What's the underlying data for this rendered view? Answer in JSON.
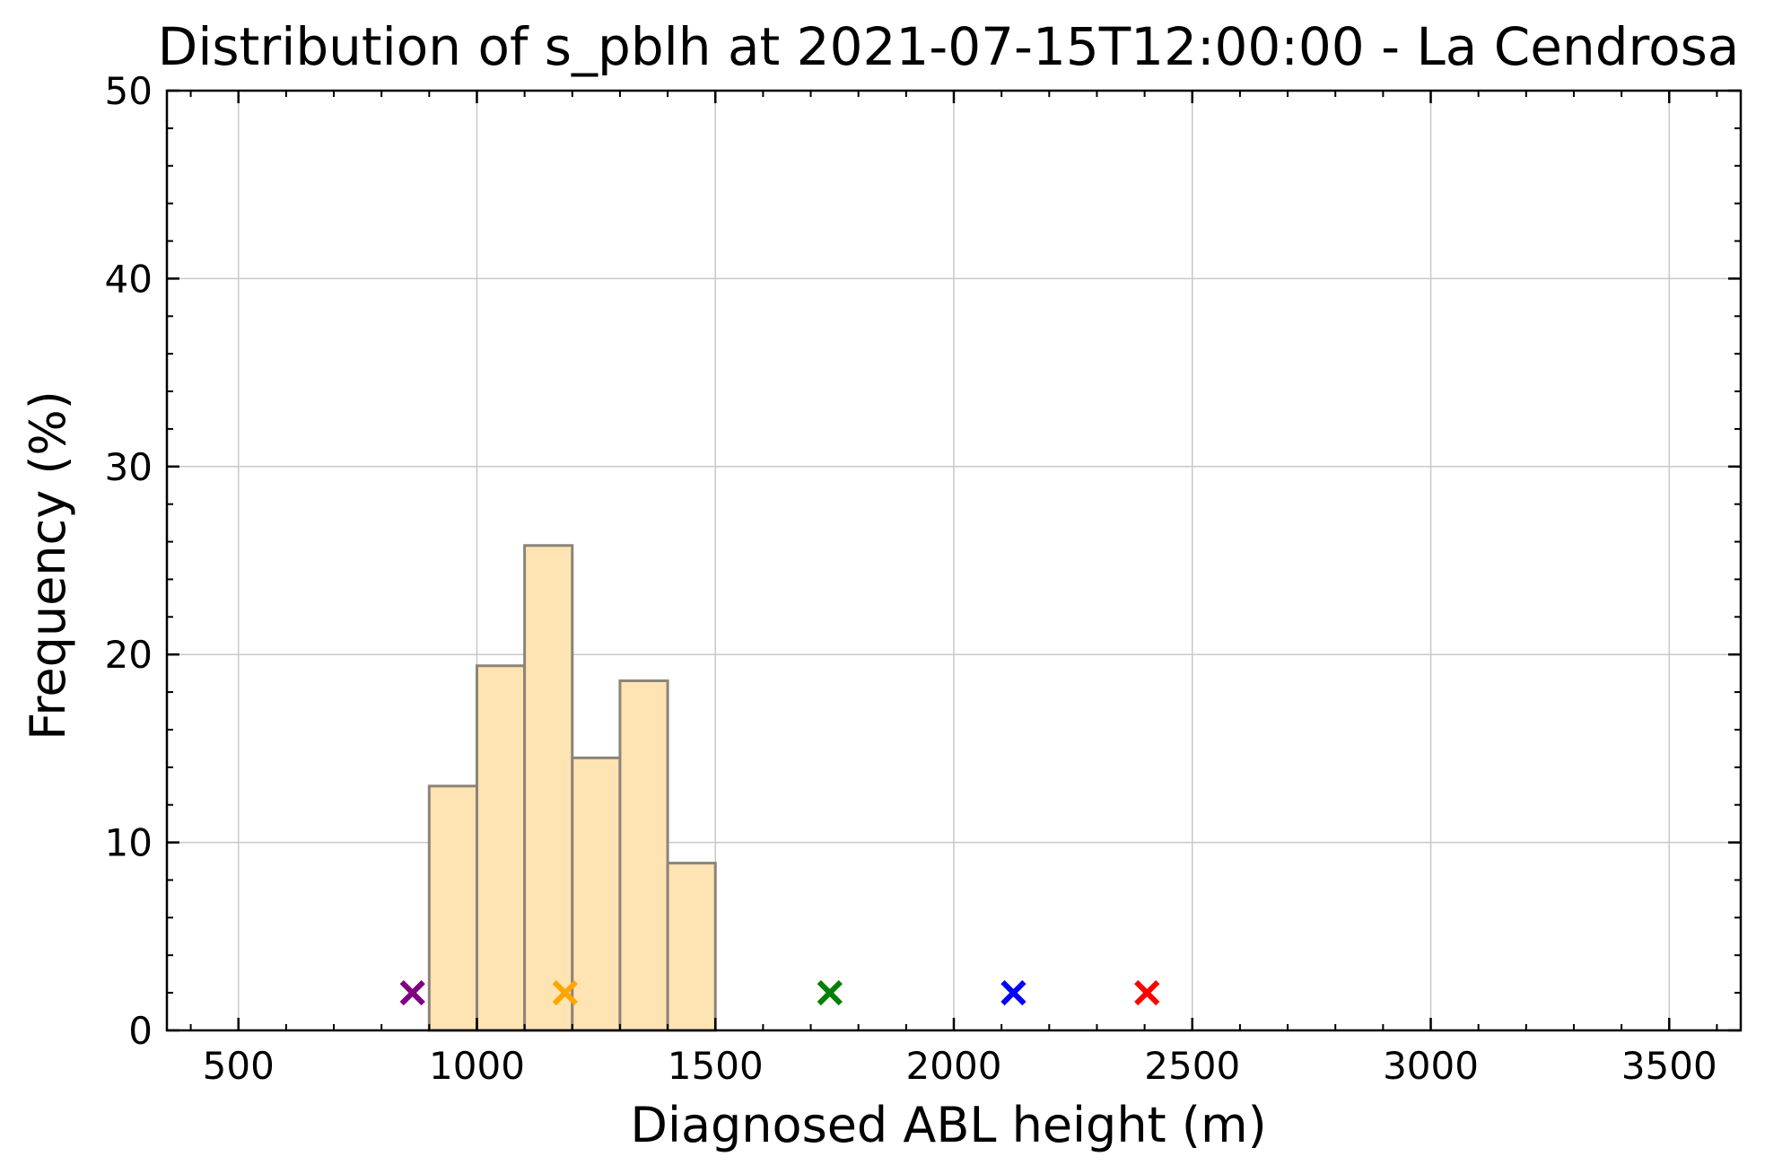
{
  "chart_data": {
    "type": "bar",
    "title": "Distribution of s_pblh at 2021-07-15T12:00:00 - La Cendrosa",
    "xlabel": "Diagnosed ABL height (m)",
    "ylabel": "Frequency (%)",
    "xlim": [
      350,
      3650
    ],
    "ylim": [
      0,
      50
    ],
    "xticks": [
      500,
      1000,
      1500,
      2000,
      2500,
      3000,
      3500
    ],
    "xtick_labels": [
      "500",
      "1000",
      "1500",
      "2000",
      "2500",
      "3000",
      "3500"
    ],
    "yticks": [
      0,
      10,
      20,
      30,
      40,
      50
    ],
    "ytick_labels": [
      "0",
      "10",
      "20",
      "30",
      "40",
      "50"
    ],
    "grid": true,
    "bins": [
      {
        "x0": 900,
        "x1": 1000,
        "value": 13.0
      },
      {
        "x0": 1000,
        "x1": 1100,
        "value": 19.4
      },
      {
        "x0": 1100,
        "x1": 1200,
        "value": 25.8
      },
      {
        "x0": 1200,
        "x1": 1300,
        "value": 14.5
      },
      {
        "x0": 1300,
        "x1": 1400,
        "value": 18.6
      },
      {
        "x0": 1400,
        "x1": 1500,
        "value": 8.9
      }
    ],
    "bar_color": "#ffe4b3",
    "bar_edge_color": "#8c8478",
    "markers": [
      {
        "x": 865,
        "y": 2,
        "color": "#800080"
      },
      {
        "x": 1185,
        "y": 2,
        "color": "#ffa500"
      },
      {
        "x": 1740,
        "y": 2,
        "color": "#008000"
      },
      {
        "x": 2125,
        "y": 2,
        "color": "#0000ff"
      },
      {
        "x": 2405,
        "y": 2,
        "color": "#ff0000"
      }
    ]
  }
}
